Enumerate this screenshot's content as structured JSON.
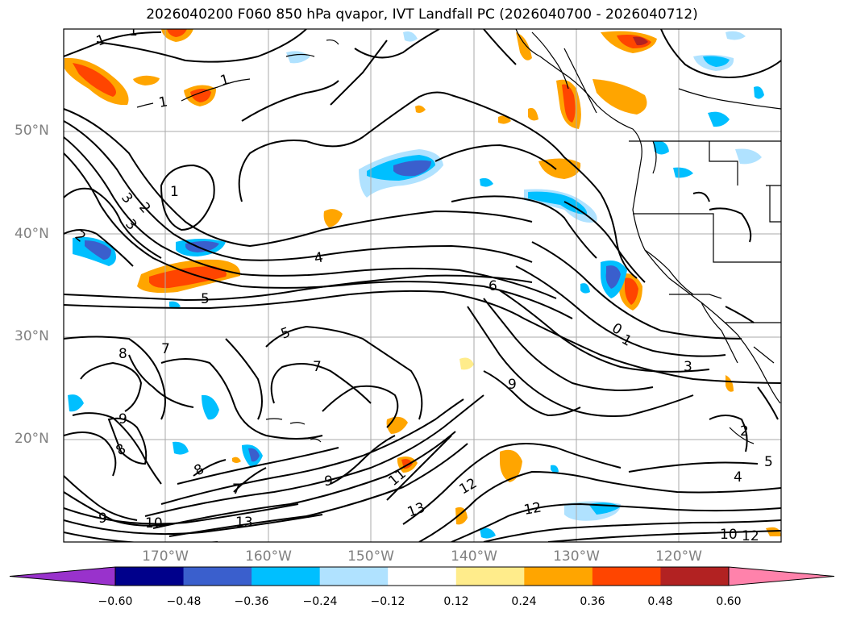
{
  "title": "2026040200 F060 850 hPa qvapor, IVT Landfall PC (2026040700 - 2026040712)",
  "lat_labels": [
    "50°N",
    "40°N",
    "30°N",
    "20°N"
  ],
  "lon_labels": [
    "170°W",
    "160°W",
    "150°W",
    "140°W",
    "130°W",
    "120°W"
  ],
  "colorbar": {
    "tick_labels": [
      "−0.60",
      "−0.48",
      "−0.36",
      "−0.24",
      "−0.12",
      "0.12",
      "0.24",
      "0.36",
      "0.48",
      "0.60"
    ],
    "colors": [
      "#9932cc",
      "#00008b",
      "#3a5fcd",
      "#00bfff",
      "#b0e2ff",
      "#ffffff",
      "#ffec8b",
      "#ffa500",
      "#ff4500",
      "#b22222",
      "#ff82ab"
    ]
  },
  "contour_labels": [
    "1",
    "1",
    "1",
    "1",
    "1",
    "2",
    "3",
    "3",
    "4",
    "5",
    "5",
    "6",
    "7",
    "7",
    "8",
    "9",
    "9",
    "10",
    "11",
    "12",
    "12",
    "13",
    "13",
    "9",
    "8",
    "8",
    "9",
    "3",
    "4",
    "5",
    "10",
    "12",
    "1",
    "2",
    "0",
    "2",
    "7"
  ]
}
